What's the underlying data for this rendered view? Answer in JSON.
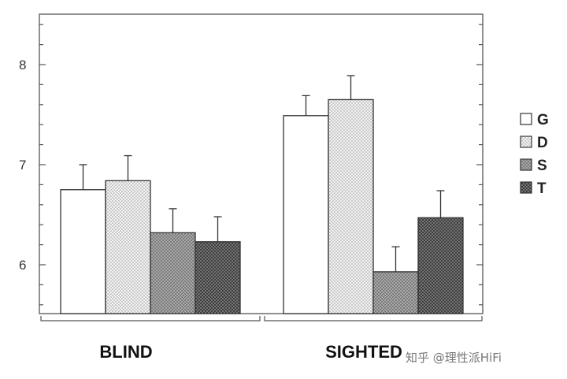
{
  "chart_data": {
    "type": "bar",
    "title": "",
    "xlabel": "",
    "ylabel": "",
    "categories": [
      "BLIND",
      "SIGHTED"
    ],
    "series": [
      {
        "name": "G",
        "values": [
          6.75,
          7.49
        ],
        "errors": [
          0.25,
          0.2
        ],
        "color": "#ffffff",
        "pattern": "none"
      },
      {
        "name": "D",
        "values": [
          6.84,
          7.65
        ],
        "errors": [
          0.25,
          0.24
        ],
        "color": "#e6e6e6",
        "pattern": "light-dots"
      },
      {
        "name": "S",
        "values": [
          6.32,
          5.93
        ],
        "errors": [
          0.24,
          0.25
        ],
        "color": "#8a8a8a",
        "pattern": "medium-dots"
      },
      {
        "name": "T",
        "values": [
          6.23,
          6.47
        ],
        "errors": [
          0.25,
          0.27
        ],
        "color": "#5a5a5a",
        "pattern": "dark-dots"
      }
    ],
    "ylim": [
      5.5,
      8.5
    ],
    "yticks": [
      6,
      7,
      8
    ],
    "ytick_labels": [
      "6",
      "7",
      "8"
    ],
    "grid": false,
    "legend": "right"
  },
  "watermark": {
    "text": "知乎 @理性派HiFi"
  }
}
